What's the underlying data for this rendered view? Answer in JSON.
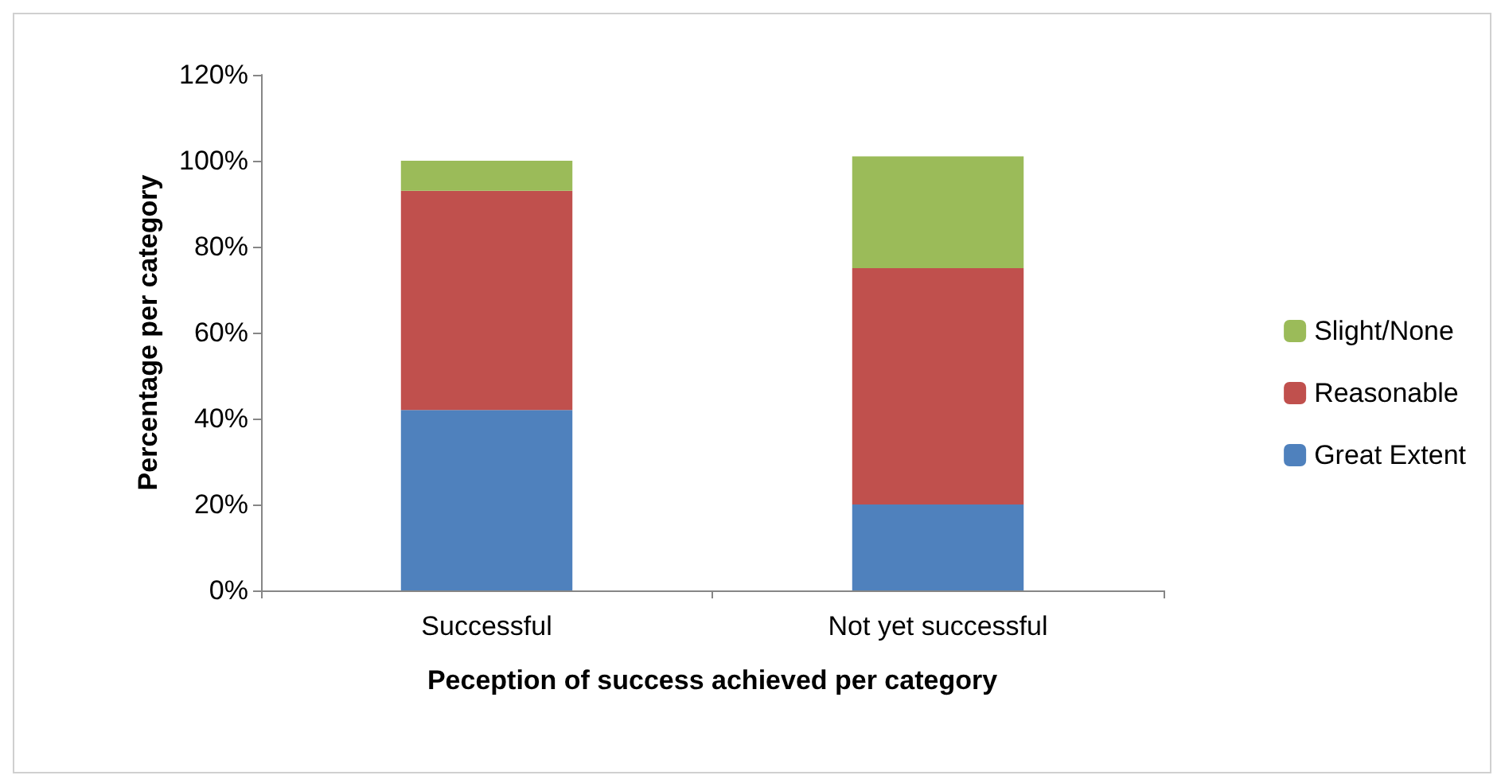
{
  "chart_data": {
    "type": "bar",
    "stacked": true,
    "xlabel": "Peception of success achieved per category",
    "ylabel": "Percentage per category",
    "categories": [
      "Successful",
      "Not yet successful"
    ],
    "series": [
      {
        "name": "Great Extent",
        "color": "#4f81bd",
        "values": [
          42,
          20
        ]
      },
      {
        "name": "Reasonable",
        "color": "#c0504d",
        "values": [
          51,
          55
        ]
      },
      {
        "name": "Slight/None",
        "color": "#9bbb59",
        "values": [
          7,
          26
        ]
      }
    ],
    "ylim": [
      0,
      120
    ],
    "yticks": [
      {
        "value": 0,
        "label": "0%"
      },
      {
        "value": 20,
        "label": "20%"
      },
      {
        "value": 40,
        "label": "40%"
      },
      {
        "value": 60,
        "label": "60%"
      },
      {
        "value": 80,
        "label": "80%"
      },
      {
        "value": 100,
        "label": "100%"
      },
      {
        "value": 120,
        "label": "120%"
      }
    ],
    "grid": false,
    "legend": "right"
  }
}
